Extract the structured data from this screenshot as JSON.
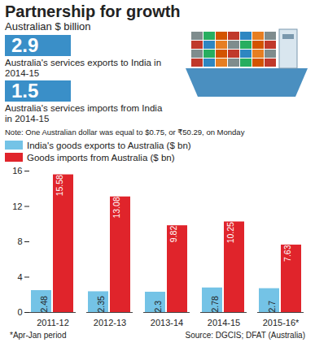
{
  "chart_data": {
    "type": "bar",
    "title": "Partnership for growth",
    "subtitle": "Australian $ billion",
    "annotations": [
      {
        "value": 2.9,
        "text": "Australia's services exports to India in 2014-15"
      },
      {
        "value": 1.5,
        "text": "Australia's services imports from India in 2014-15"
      }
    ],
    "note": "Note: One Australian dollar was equal to $0.75, or ₹50.29, on Monday",
    "categories": [
      "2011-12",
      "2012-13",
      "2013-14",
      "2014-15",
      "2015-16*"
    ],
    "series": [
      {
        "name": "India's goods exports to Australia ($ bn)",
        "color": "#74c3e6",
        "values": [
          2.48,
          2.35,
          2.3,
          2.78,
          2.7
        ]
      },
      {
        "name": "Goods imports from Australia ($ bn)",
        "color": "#e0242b",
        "values": [
          15.58,
          13.08,
          9.82,
          10.25,
          7.63
        ]
      }
    ],
    "ylim": [
      0,
      16
    ],
    "yticks": [
      0,
      4,
      8,
      12,
      16
    ],
    "grid": false,
    "data_labels": true,
    "footnote": "*Apr-Jan period",
    "source": "Source: DGCIS; DFAT (Australia)"
  }
}
